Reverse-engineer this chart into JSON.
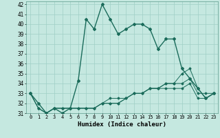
{
  "title": "",
  "xlabel": "Humidex (Indice chaleur)",
  "bg_color": "#c5e8e0",
  "grid_color": "#9fcfc5",
  "line_color": "#1a6b5a",
  "xlim": [
    -0.5,
    23.5
  ],
  "ylim": [
    31,
    42.3
  ],
  "yticks": [
    31,
    32,
    33,
    34,
    35,
    36,
    37,
    38,
    39,
    40,
    41,
    42
  ],
  "xticks": [
    0,
    1,
    2,
    3,
    4,
    5,
    6,
    7,
    8,
    9,
    10,
    11,
    12,
    13,
    14,
    15,
    16,
    17,
    18,
    19,
    20,
    21,
    22,
    23
  ],
  "series": [
    [
      33,
      32,
      31,
      31.5,
      31,
      31.5,
      34.3,
      40.5,
      39.5,
      42,
      40.5,
      39,
      39.5,
      40,
      40,
      39.5,
      37.5,
      38.5,
      38.5,
      35.5,
      34.5,
      33.5,
      32.5,
      33
    ],
    [
      33,
      31.5,
      31,
      31.5,
      31.5,
      31.5,
      31.5,
      31.5,
      31.5,
      32,
      32,
      32,
      32.5,
      33,
      33,
      33.5,
      33.5,
      34,
      34,
      34,
      34.5,
      33,
      33,
      33
    ],
    [
      33,
      31.5,
      31,
      31.5,
      31.5,
      31.5,
      31.5,
      31.5,
      31.5,
      32,
      32.5,
      32.5,
      32.5,
      33,
      33,
      33.5,
      33.5,
      34,
      34,
      35,
      35.5,
      33.5,
      32.5,
      33
    ],
    [
      33,
      31.5,
      31,
      31.5,
      31.5,
      31.5,
      31.5,
      31.5,
      31.5,
      32,
      32,
      32,
      32.5,
      33,
      33,
      33.5,
      33.5,
      33.5,
      33.5,
      33.5,
      34,
      32.5,
      32.5,
      33
    ]
  ]
}
